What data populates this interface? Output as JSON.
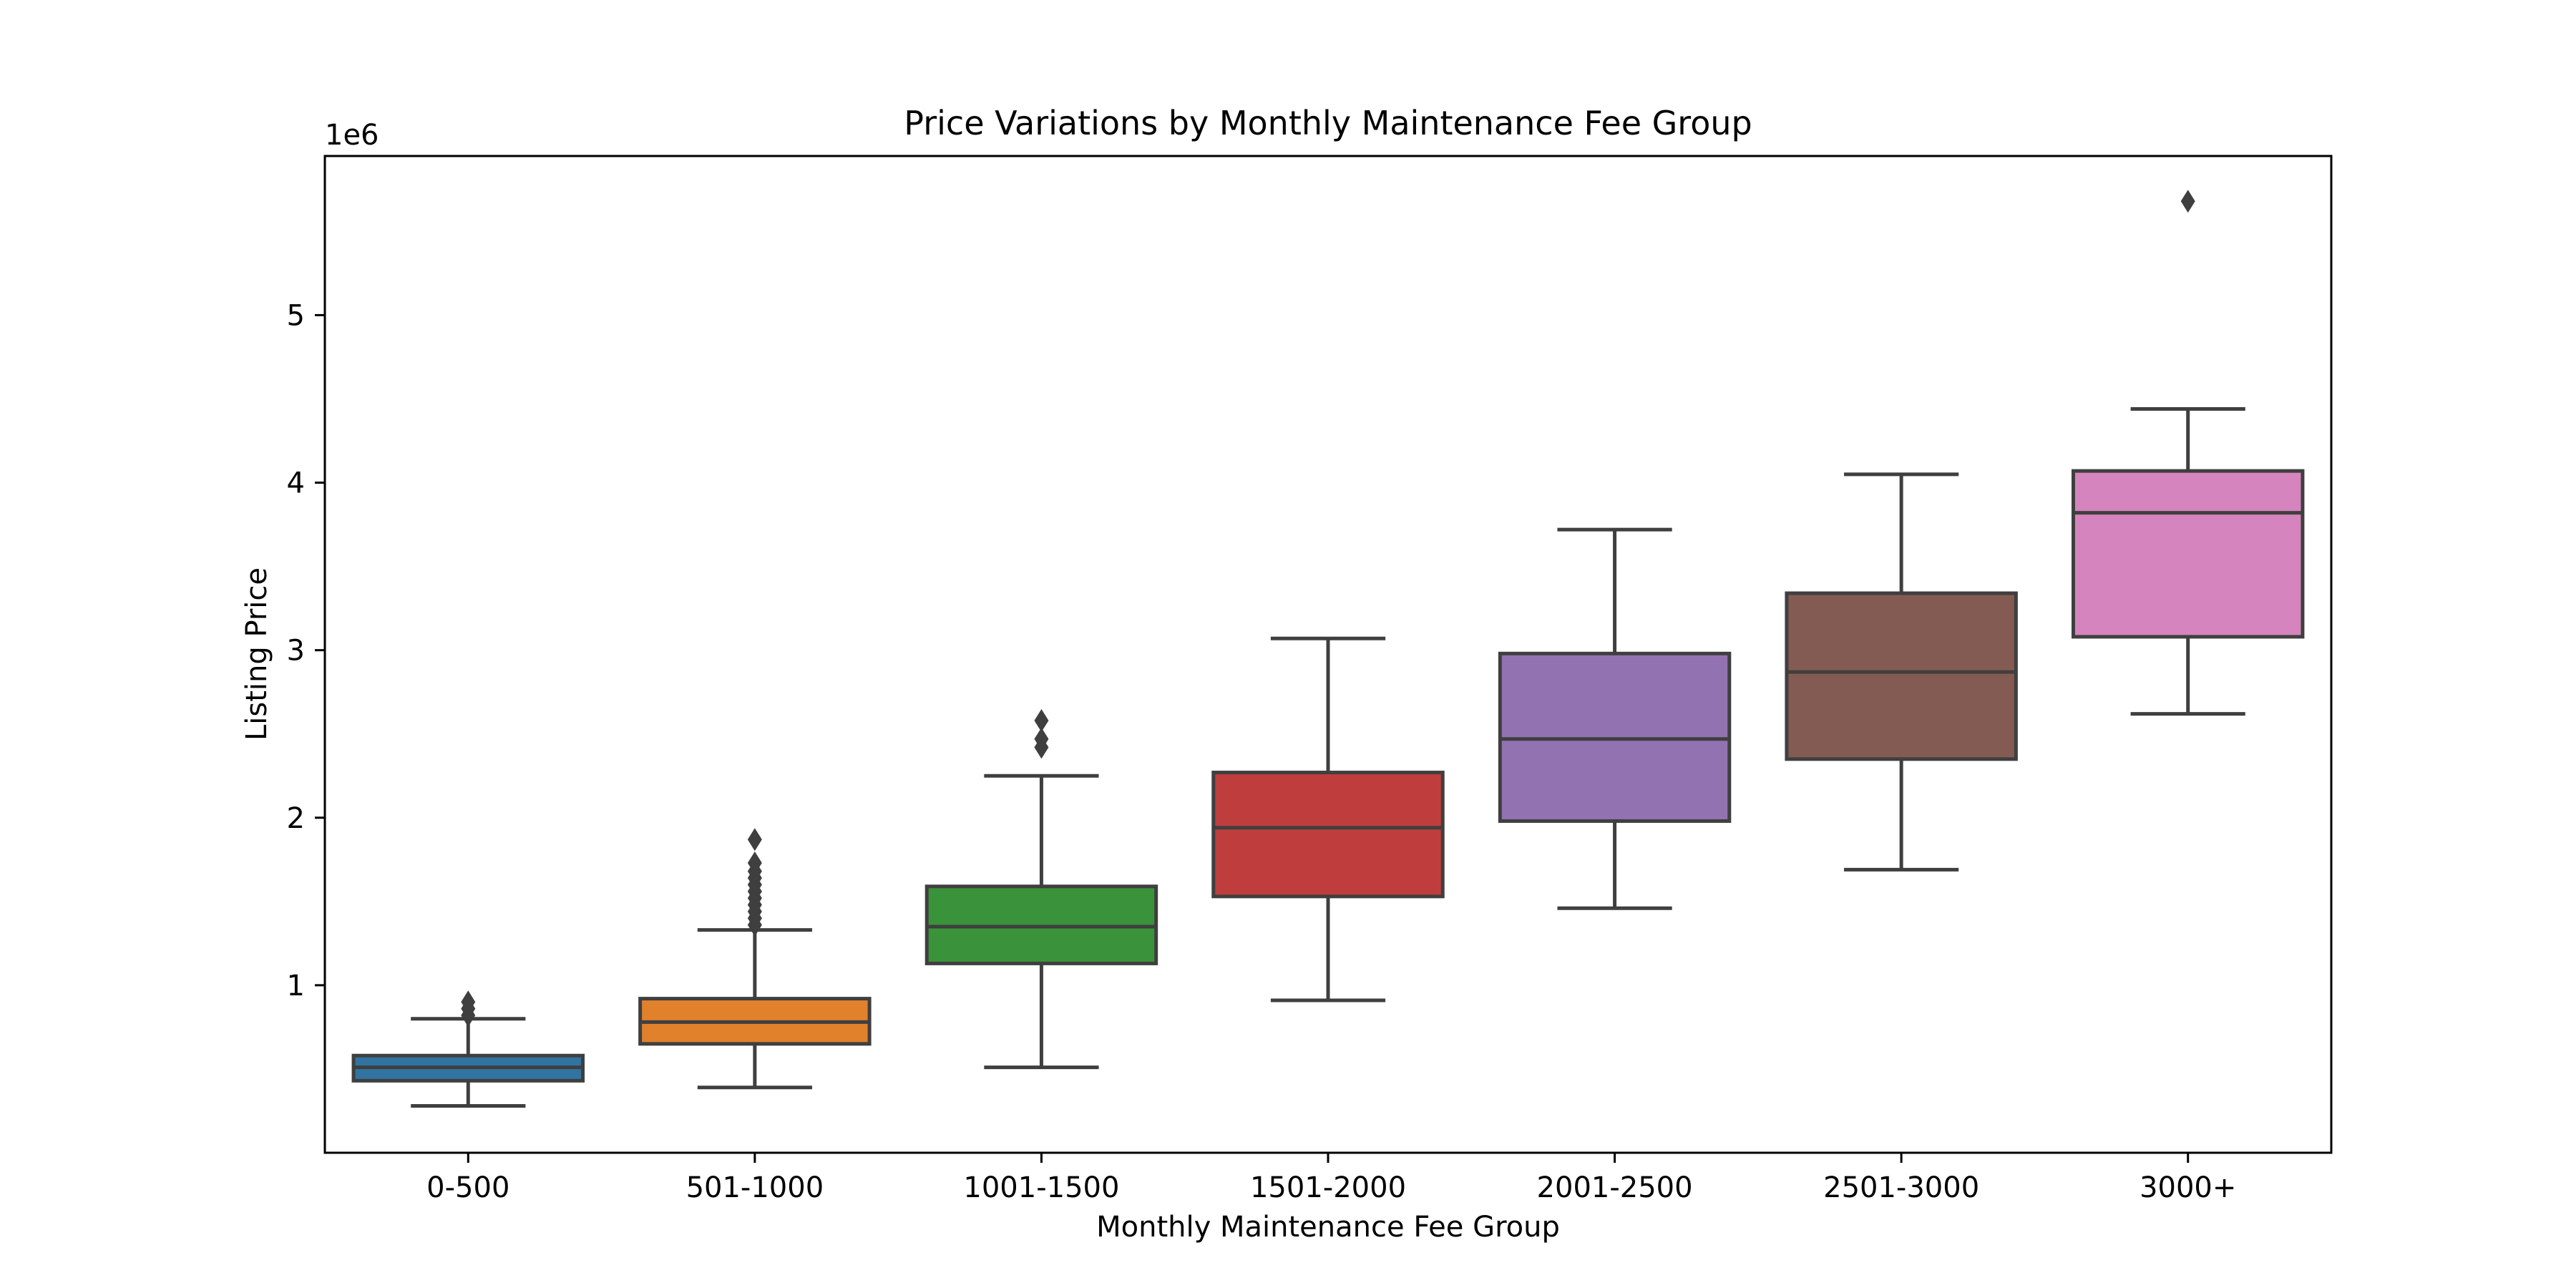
{
  "chart_data": {
    "type": "box",
    "title": "Price Variations by Monthly Maintenance Fee Group",
    "xlabel": "Monthly Maintenance Fee Group",
    "ylabel": "Listing Price",
    "y_offset_label": "1e6",
    "ylim": [
      0.0,
      5.95
    ],
    "yticks": [
      1,
      2,
      3,
      4,
      5
    ],
    "grid": false,
    "categories": [
      "0-500",
      "501-1000",
      "1001-1500",
      "1501-2000",
      "2001-2500",
      "2501-3000",
      "3000+"
    ],
    "boxes": [
      {
        "category": "0-500",
        "whislo": 0.28,
        "q1": 0.43,
        "med": 0.51,
        "q3": 0.58,
        "whishi": 0.8,
        "fliers": [
          0.82,
          0.86,
          0.9
        ],
        "color": "#3274a1"
      },
      {
        "category": "501-1000",
        "whislo": 0.39,
        "q1": 0.65,
        "med": 0.78,
        "q3": 0.92,
        "whishi": 1.33,
        "fliers": [
          1.36,
          1.4,
          1.44,
          1.48,
          1.52,
          1.56,
          1.6,
          1.64,
          1.68,
          1.73,
          1.87
        ],
        "color": "#e1812c"
      },
      {
        "category": "1001-1500",
        "whislo": 0.51,
        "q1": 1.13,
        "med": 1.35,
        "q3": 1.59,
        "whishi": 2.25,
        "fliers": [
          2.42,
          2.47,
          2.58
        ],
        "color": "#3a923a"
      },
      {
        "category": "1501-2000",
        "whislo": 0.91,
        "q1": 1.53,
        "med": 1.94,
        "q3": 2.27,
        "whishi": 3.07,
        "fliers": [],
        "color": "#c03d3e"
      },
      {
        "category": "2001-2500",
        "whislo": 1.46,
        "q1": 1.98,
        "med": 2.47,
        "q3": 2.98,
        "whishi": 3.72,
        "fliers": [],
        "color": "#9372b2"
      },
      {
        "category": "2501-3000",
        "whislo": 1.69,
        "q1": 2.35,
        "med": 2.87,
        "q3": 3.34,
        "whishi": 4.05,
        "fliers": [],
        "color": "#845b53"
      },
      {
        "category": "3000+",
        "whislo": 2.62,
        "q1": 3.08,
        "med": 3.82,
        "q3": 4.07,
        "whishi": 4.44,
        "fliers": [
          5.68
        ],
        "color": "#d684bd"
      }
    ],
    "line_color": "#3f3f3f"
  }
}
